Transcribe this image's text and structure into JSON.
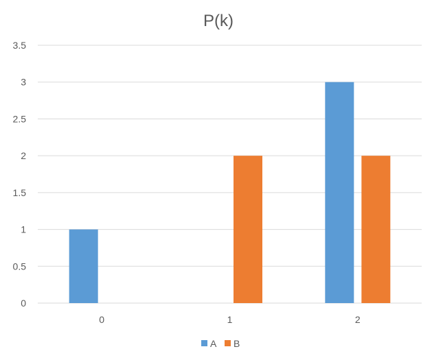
{
  "chart_data": {
    "type": "bar",
    "title": "P(k)",
    "xlabel": "",
    "ylabel": "",
    "categories": [
      "0",
      "1",
      "2"
    ],
    "series": [
      {
        "name": "A",
        "color": "#5b9bd5",
        "values": [
          1,
          0,
          3
        ]
      },
      {
        "name": "B",
        "color": "#ed7d31",
        "values": [
          0,
          2,
          2
        ]
      }
    ],
    "ylim": [
      0,
      3.5
    ],
    "yticks": [
      "0",
      "0.5",
      "1",
      "1.5",
      "2",
      "2.5",
      "3",
      "3.5"
    ],
    "grid": true,
    "legend_position": "bottom"
  }
}
